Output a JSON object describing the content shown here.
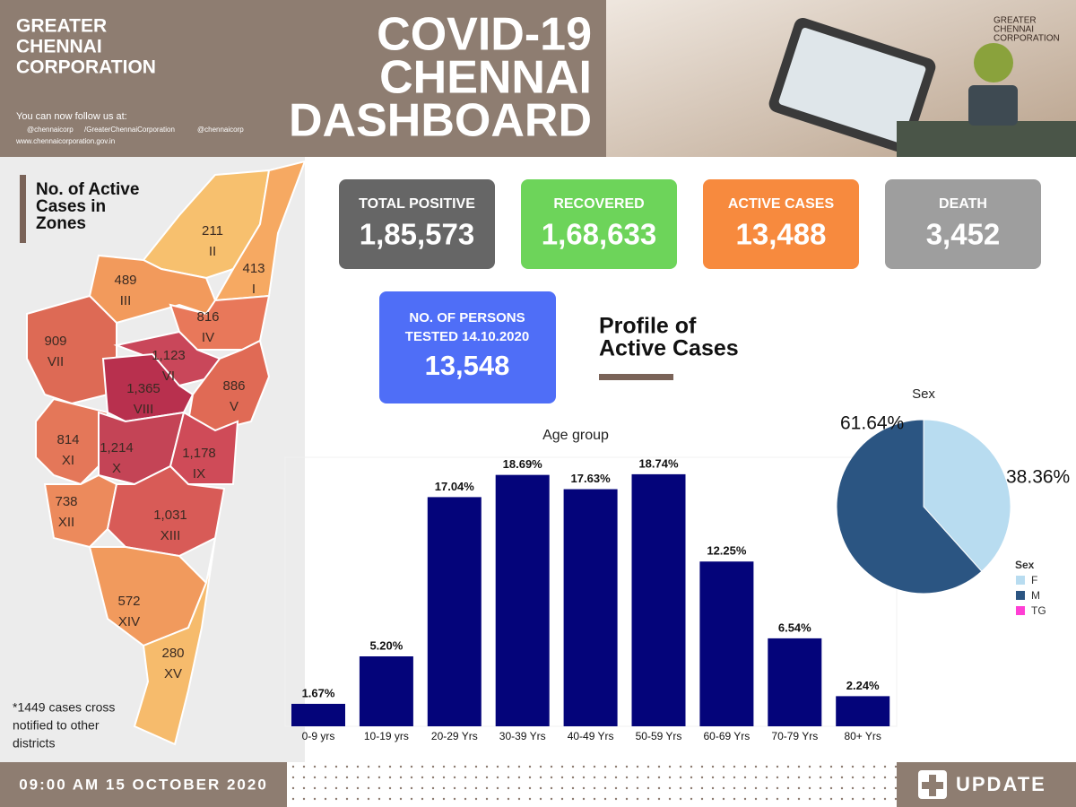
{
  "header": {
    "org_lines": [
      "GREATER",
      "CHENNAI",
      "CORPORATION"
    ],
    "follow_text": "You can now follow us at:",
    "social": [
      "@chennaicorp",
      "/GreaterChennaiCorporation",
      "@chennaicorp"
    ],
    "website": "www.chennaicorporation.gov.in",
    "title_lines": [
      "COVID-19",
      "CHENNAI",
      "DASHBOARD"
    ],
    "logo_lines": [
      "GREATER",
      "CHENNAI",
      "CORPORATION"
    ]
  },
  "zones": {
    "title_lines": [
      "No. of Active",
      "Cases in",
      "Zones"
    ],
    "items": [
      {
        "value": "211",
        "name": "II"
      },
      {
        "value": "413",
        "name": "I"
      },
      {
        "value": "489",
        "name": "III"
      },
      {
        "value": "816",
        "name": "IV"
      },
      {
        "value": "909",
        "name": "VII"
      },
      {
        "value": "1,123",
        "name": "VI"
      },
      {
        "value": "1,365",
        "name": "VIII"
      },
      {
        "value": "886",
        "name": "V"
      },
      {
        "value": "814",
        "name": "XI"
      },
      {
        "value": "1,214",
        "name": "X"
      },
      {
        "value": "1,178",
        "name": "IX"
      },
      {
        "value": "738",
        "name": "XII"
      },
      {
        "value": "1,031",
        "name": "XIII"
      },
      {
        "value": "572",
        "name": "XIV"
      },
      {
        "value": "280",
        "name": "XV"
      }
    ],
    "note_lines": [
      "*1449 cases cross",
      "notified to other",
      "districts"
    ]
  },
  "stats": [
    {
      "label": "TOTAL POSITIVE",
      "value": "1,85,573"
    },
    {
      "label": "RECOVERED",
      "value": "1,68,633"
    },
    {
      "label": "ACTIVE CASES",
      "value": "13,488"
    },
    {
      "label": "DEATH",
      "value": "3,452"
    }
  ],
  "tested": {
    "label_lines": [
      "NO. OF PERSONS",
      "TESTED 14.10.2020"
    ],
    "value": "13,548"
  },
  "profile_title_lines": [
    "Profile of",
    "Active Cases"
  ],
  "chart_data": [
    {
      "type": "bar",
      "title": "Age group",
      "categories": [
        "0-9 yrs",
        "10-19 yrs",
        "20-29 Yrs",
        "30-39 Yrs",
        "40-49 Yrs",
        "50-59 Yrs",
        "60-69 Yrs",
        "70-79 Yrs",
        "80+ Yrs"
      ],
      "values": [
        1.67,
        5.2,
        17.04,
        18.69,
        17.63,
        18.74,
        12.25,
        6.54,
        2.24
      ],
      "value_labels": [
        "1.67%",
        "5.20%",
        "17.04%",
        "18.69%",
        "17.63%",
        "18.74%",
        "12.25%",
        "6.54%",
        "2.24%"
      ],
      "color": "#04047a",
      "ylim": [
        0,
        20
      ]
    },
    {
      "type": "pie",
      "title": "Sex",
      "legend_title": "Sex",
      "categories": [
        "F",
        "M",
        "TG"
      ],
      "values": [
        38.36,
        61.64,
        0
      ],
      "value_labels": [
        "38.36%",
        "61.64%",
        null
      ],
      "colors": [
        "#b8dcf0",
        "#2b5582",
        "#ff3fd4"
      ]
    }
  ],
  "footer": {
    "timestamp": "09:00 AM 15 OCTOBER 2020",
    "update": "UPDATE"
  }
}
